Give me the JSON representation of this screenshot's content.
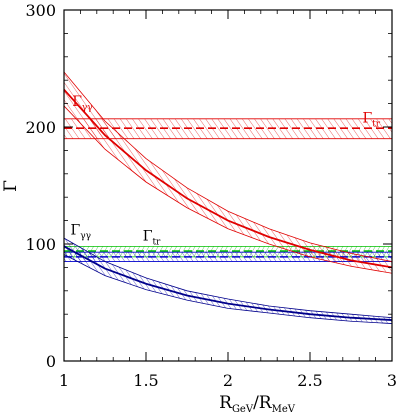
{
  "chart_data": {
    "type": "line",
    "title": "",
    "xlim": [
      1,
      3
    ],
    "ylim": [
      0,
      300
    ],
    "x_ticks": [
      1,
      1.5,
      2,
      2.5,
      3
    ],
    "x_tick_labels": [
      "1",
      "1.5",
      "2",
      "2.5",
      "3"
    ],
    "y_ticks": [
      0,
      100,
      200,
      300
    ],
    "y_tick_labels": [
      "0",
      "100",
      "200",
      "300"
    ],
    "xlabel": {
      "main1": "R",
      "sub1": "GeV",
      "sep": "/R",
      "sub2": "MeV"
    },
    "ylabel": "Γ",
    "grid": false,
    "curves": [
      {
        "color": "#e00000",
        "x": [
          1.0,
          1.25,
          1.5,
          1.75,
          2.0,
          2.25,
          2.5,
          2.75,
          3.0
        ],
        "y": [
          232,
          193,
          163,
          139,
          120,
          106,
          95,
          86,
          80
        ],
        "band_upper": [
          247,
          205,
          173,
          148,
          128,
          113,
          101,
          92,
          85
        ],
        "band_lower": [
          218,
          181,
          153,
          131,
          113,
          100,
          89,
          81,
          75
        ]
      },
      {
        "color": "#00008b",
        "x": [
          1.0,
          1.25,
          1.5,
          1.75,
          2.0,
          2.25,
          2.5,
          2.75,
          3.0
        ],
        "y": [
          98,
          79,
          66,
          56,
          49,
          44,
          40,
          37,
          35
        ],
        "band_upper": [
          105,
          85,
          71,
          60,
          53,
          47,
          43,
          40,
          37
        ],
        "band_lower": [
          91,
          73,
          61,
          52,
          45,
          41,
          37,
          34,
          32
        ]
      }
    ],
    "hlines": [
      {
        "color": "#e00000",
        "y": 199,
        "band": [
          190,
          207
        ]
      },
      {
        "color": "#00c000",
        "y": 94,
        "band": [
          89,
          98
        ]
      },
      {
        "color": "#0000cc",
        "y": 89,
        "band": [
          85,
          93
        ]
      }
    ],
    "annotations": [
      {
        "main": "Γ",
        "sub": "γγ",
        "color": "#e00000",
        "x": 1.05,
        "y": 218
      },
      {
        "main": "Γ",
        "sub": "tr",
        "color": "#e00000",
        "x": 2.82,
        "y": 204
      },
      {
        "main": "Γ",
        "sub": "γγ",
        "color": "#000000",
        "x": 1.04,
        "y": 108
      },
      {
        "main": "Γ",
        "sub": "tr",
        "color": "#000000",
        "x": 1.48,
        "y": 103
      }
    ]
  }
}
